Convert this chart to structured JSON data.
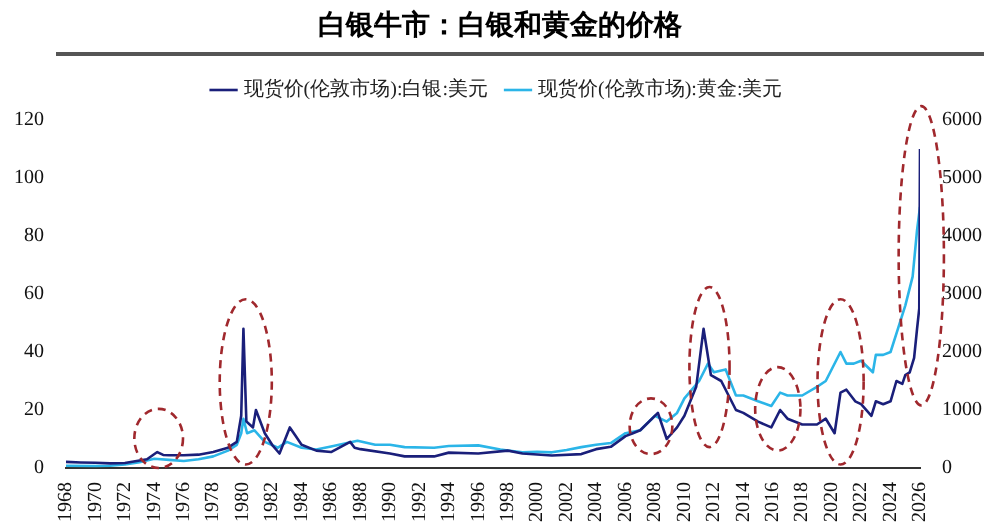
{
  "chart_data": {
    "type": "line",
    "title": "白银牛市：白银和黄金的价格",
    "legend": "top",
    "grid": false,
    "marker": "none",
    "line_style": "solid",
    "xlim": [
      1968,
      2026
    ],
    "xticks": [
      1968,
      1970,
      1972,
      1974,
      1976,
      1978,
      1980,
      1982,
      1984,
      1986,
      1988,
      1990,
      1992,
      1994,
      1996,
      1998,
      2000,
      2002,
      2004,
      2006,
      2008,
      2010,
      2012,
      2014,
      2016,
      2018,
      2020,
      2022,
      2024,
      2026
    ],
    "ylim": [
      0,
      120
    ],
    "yticks": [
      0,
      20,
      40,
      60,
      80,
      100,
      120
    ],
    "y2lim": [
      0,
      6000
    ],
    "y2ticks": [
      0,
      1000,
      2000,
      3000,
      4000,
      5000,
      6000
    ],
    "series": [
      {
        "name": "现货价(伦敦市场):白银:美元",
        "color": "#1a1f7a",
        "x": [
          1968,
          1969,
          1970,
          1971,
          1972,
          1973,
          1973.5,
          1974.2,
          1974.6,
          1975,
          1976,
          1977,
          1978,
          1979,
          1979.6,
          1979.9,
          1980.05,
          1980.25,
          1980.7,
          1980.9,
          1981.5,
          1982,
          1982.5,
          1983.2,
          1983.6,
          1984,
          1985,
          1986,
          1987.3,
          1987.6,
          1988,
          1990,
          1991,
          1993,
          1994,
          1996,
          1998,
          1999,
          2001,
          2003,
          2004,
          2005,
          2006,
          2006.5,
          2007,
          2008.2,
          2008.8,
          2009.5,
          2010,
          2010.8,
          2011.3,
          2011.8,
          2012.5,
          2013,
          2013.5,
          2014,
          2015,
          2015.9,
          2016.5,
          2017,
          2018,
          2019,
          2019.6,
          2020.2,
          2020.6,
          2021,
          2021.6,
          2022,
          2022.7,
          2023,
          2023.5,
          2024,
          2024.4,
          2024.8,
          2025,
          2025.3,
          2025.6,
          2025.8,
          2025.95,
          2026
        ],
        "values": [
          2.1,
          1.9,
          1.8,
          1.6,
          1.7,
          2.6,
          3,
          5.5,
          4.5,
          4.4,
          4.4,
          4.6,
          5.5,
          7,
          9,
          18,
          48,
          16,
          14,
          20,
          12,
          8,
          5,
          14,
          11,
          8,
          6,
          5.5,
          9,
          7,
          6.5,
          5,
          4,
          4,
          5.3,
          5,
          6,
          5,
          4.3,
          4.8,
          6.5,
          7.3,
          11,
          12,
          13,
          19,
          10,
          14,
          18,
          28,
          48,
          32,
          30,
          25,
          20,
          19,
          16,
          14,
          20,
          17,
          15,
          15,
          17,
          12,
          26,
          27,
          23,
          22,
          18,
          23,
          22,
          23,
          30,
          29,
          32,
          33,
          38,
          48,
          55,
          110
        ]
      },
      {
        "name": "现货价(伦敦市场):黄金:美元",
        "color": "#2bb5e8",
        "axis": "y2",
        "x": [
          1968,
          1970,
          1971,
          1972,
          1973,
          1974,
          1975,
          1976,
          1977,
          1978,
          1979,
          1979.6,
          1979.9,
          1980.05,
          1980.3,
          1980.8,
          1981.5,
          1982.4,
          1983,
          1984,
          1985,
          1986,
          1987.8,
          1989,
          1990,
          1991,
          1993,
          1994,
          1996,
          1997.5,
          1999,
          2000,
          2001,
          2002,
          2003,
          2004,
          2005,
          2006,
          2007,
          2008,
          2008.8,
          2009.5,
          2010,
          2011,
          2011.6,
          2012,
          2012.8,
          2013.5,
          2014,
          2015,
          2015.9,
          2016.5,
          2017,
          2018,
          2019,
          2019.6,
          2020.6,
          2021,
          2021.5,
          2022,
          2022.8,
          2023,
          2023.5,
          2024,
          2024.5,
          2025,
          2025.5,
          2025.8,
          2026
        ],
        "values": [
          40,
          35,
          40,
          60,
          100,
          160,
          140,
          120,
          150,
          200,
          300,
          400,
          600,
          850,
          600,
          650,
          450,
          350,
          450,
          350,
          320,
          370,
          470,
          400,
          400,
          360,
          350,
          380,
          390,
          320,
          270,
          280,
          270,
          310,
          360,
          400,
          430,
          600,
          650,
          900,
          800,
          950,
          1200,
          1500,
          1800,
          1650,
          1700,
          1250,
          1250,
          1150,
          1070,
          1300,
          1250,
          1250,
          1400,
          1500,
          2000,
          1800,
          1800,
          1850,
          1650,
          1950,
          1950,
          2000,
          2400,
          2800,
          3300,
          4100,
          4500
        ]
      }
    ]
  }
}
